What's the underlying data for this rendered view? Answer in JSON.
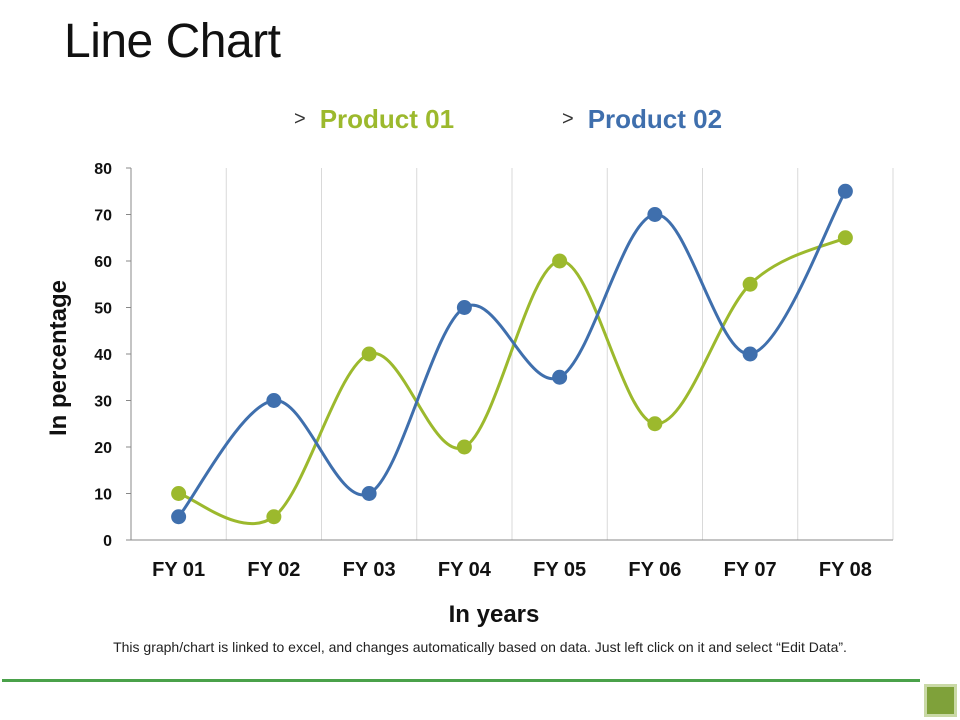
{
  "page": {
    "title": "Line Chart",
    "footnote": "This graph/chart is linked to excel, and changes automatically  based on data. Just left click on it and select “Edit Data”."
  },
  "legend": {
    "chevron": ">"
  },
  "colors": {
    "product1": "#9cb92d",
    "product2": "#3f6fad",
    "grid": "#d9d9d9",
    "axis": "#888888",
    "accent_line": "#4aa14a",
    "corner_box": "#7fa13a",
    "corner_box_border": "#c9d9a6"
  },
  "chart_data": {
    "type": "line",
    "smooth": true,
    "categories": [
      "FY 01",
      "FY 02",
      "FY 03",
      "FY 04",
      "FY 05",
      "FY 06",
      "FY 07",
      "FY 08"
    ],
    "series": [
      {
        "name": "Product 01",
        "color": "#9cb92d",
        "values": [
          10,
          5,
          40,
          20,
          60,
          25,
          55,
          65
        ]
      },
      {
        "name": "Product 02",
        "color": "#3f6fad",
        "values": [
          5,
          30,
          10,
          50,
          35,
          70,
          40,
          75
        ]
      }
    ],
    "xlabel": "In years",
    "ylabel": "In percentage",
    "ylim": [
      0,
      80
    ],
    "yticks": [
      0,
      10,
      20,
      30,
      40,
      50,
      60,
      70,
      80
    ],
    "grid": "vertical",
    "legend_position": "top-center"
  }
}
